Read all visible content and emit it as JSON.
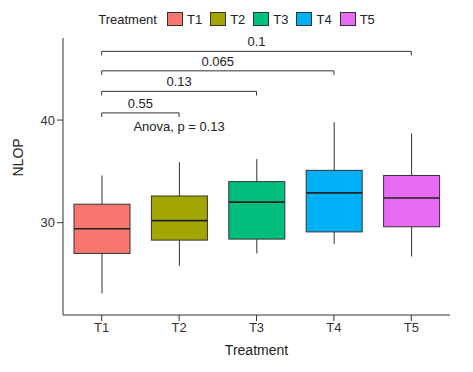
{
  "chart_data": {
    "type": "box",
    "x_label": "Treatment",
    "y_label": "NLOP",
    "legend_title": "Treatment",
    "legend": "top",
    "grid": false,
    "categories": [
      "T1",
      "T2",
      "T3",
      "T4",
      "T5"
    ],
    "colors": [
      "#F8766D",
      "#A3A500",
      "#00BF7D",
      "#00B0F6",
      "#E76BF3"
    ],
    "boxes": [
      {
        "min": 23.1,
        "q1": 27.0,
        "median": 29.4,
        "q3": 31.8,
        "max": 34.6
      },
      {
        "min": 25.8,
        "q1": 28.3,
        "median": 30.2,
        "q3": 32.6,
        "max": 35.9
      },
      {
        "min": 27.0,
        "q1": 28.4,
        "median": 32.0,
        "q3": 34.0,
        "max": 36.2
      },
      {
        "min": 27.9,
        "q1": 29.1,
        "median": 32.9,
        "q3": 35.1,
        "max": 39.8
      },
      {
        "min": 26.7,
        "q1": 29.6,
        "median": 32.4,
        "q3": 34.6,
        "max": 38.7
      }
    ],
    "ylim": [
      21,
      48
    ],
    "yticks": [
      30,
      40
    ],
    "comparisons": [
      {
        "from": "T1",
        "to": "T2",
        "y": 40.7,
        "label": "0.55"
      },
      {
        "from": "T1",
        "to": "T3",
        "y": 42.8,
        "label": "0.13"
      },
      {
        "from": "T1",
        "to": "T4",
        "y": 44.8,
        "label": "0.065"
      },
      {
        "from": "T1",
        "to": "T5",
        "y": 46.7,
        "label": "0.1"
      }
    ],
    "annotations": [
      {
        "text": "Anova, p = 0.13",
        "x": "T2",
        "y": 39.4
      }
    ]
  }
}
